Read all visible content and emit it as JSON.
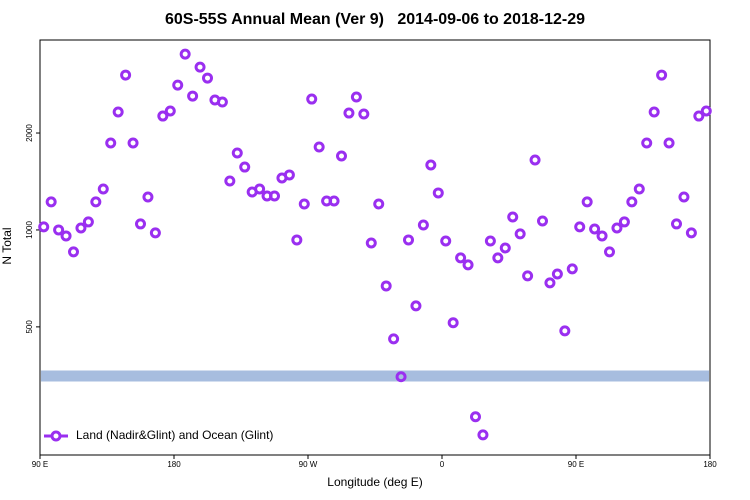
{
  "chart_data": {
    "type": "scatter",
    "title": "60S-55S Annual Mean (Ver 9)   2014-09-06 to 2018-12-29",
    "xlabel": "Longitude (deg E)",
    "ylabel": "N Total",
    "log_y": true,
    "xlim": [
      90,
      540
    ],
    "xticks": [
      {
        "value": 90,
        "label": "90 E"
      },
      180,
      {
        "value": 270,
        "label": "90 W"
      },
      {
        "value": 360,
        "label": "0"
      },
      {
        "value": 450,
        "label": "90 E"
      },
      {
        "value": 540,
        "label": "180"
      }
    ],
    "ylim": [
      200,
      3890
    ],
    "yticks": [
      500,
      1000,
      2000
    ],
    "legend_position": "lower left",
    "band": {
      "value": 352,
      "color": "#a7bddf"
    },
    "series": [
      {
        "name": "Land (Nadir&Glint) and Ocean (Glint)",
        "color": "#9a2ff0",
        "x": [
          92.5,
          97.5,
          102.5,
          107.5,
          112.5,
          117.5,
          122.5,
          127.5,
          132.5,
          137.5,
          142.5,
          147.5,
          152.5,
          157.5,
          162.5,
          167.5,
          172.5,
          177.5,
          182.5,
          187.5,
          192.5,
          197.5,
          202.5,
          207.5,
          212.5,
          217.5,
          222.5,
          227.5,
          232.5,
          237.5,
          242.5,
          247.5,
          252.5,
          257.5,
          262.5,
          267.5,
          272.5,
          277.5,
          282.5,
          287.5,
          292.5,
          297.5,
          302.5,
          307.5,
          312.5,
          317.5,
          322.5,
          327.5,
          332.5,
          337.5,
          342.5,
          347.5,
          352.5,
          357.5,
          362.5,
          367.5,
          372.5,
          377.5,
          382.5,
          387.5,
          392.5,
          397.5,
          402.5,
          407.5,
          412.5,
          417.5,
          422.5,
          427.5,
          432.5,
          437.5,
          442.5,
          447.5,
          452.5,
          457.5,
          462.5,
          467.5,
          472.5,
          477.5,
          482.5,
          487.5,
          492.5,
          497.5,
          502.5,
          507.5,
          512.5,
          517.5,
          522.5,
          527.5,
          532.5,
          537.5
        ],
        "values": [
          1022,
          1222,
          1000,
          958,
          855,
          1014,
          1059,
          1222,
          1340,
          1862,
          2324,
          3027,
          1862,
          1044,
          1266,
          979,
          2258,
          2341,
          2818,
          3517,
          2605,
          3205,
          2963,
          2532,
          2496,
          1419,
          1734,
          1568,
          1312,
          1340,
          1275,
          1275,
          1450,
          1482,
          931,
          1204,
          2550,
          1810,
          1230,
          1230,
          1697,
          2307,
          2587,
          2291,
          911,
          1204,
          670,
          459,
          350,
          931,
          581,
          1036,
          1591,
          1303,
          924,
          515,
          819,
          779,
          263,
          231,
          924,
          819,
          879,
          1097,
          972,
          720,
          1649,
          1066,
          685,
          730,
          486,
          757,
          1022,
          1222,
          1007,
          958,
          855,
          1014,
          1059,
          1222,
          1340,
          1862,
          2324,
          3027,
          1862,
          1044,
          1266,
          979,
          2258,
          2341
        ]
      }
    ]
  }
}
